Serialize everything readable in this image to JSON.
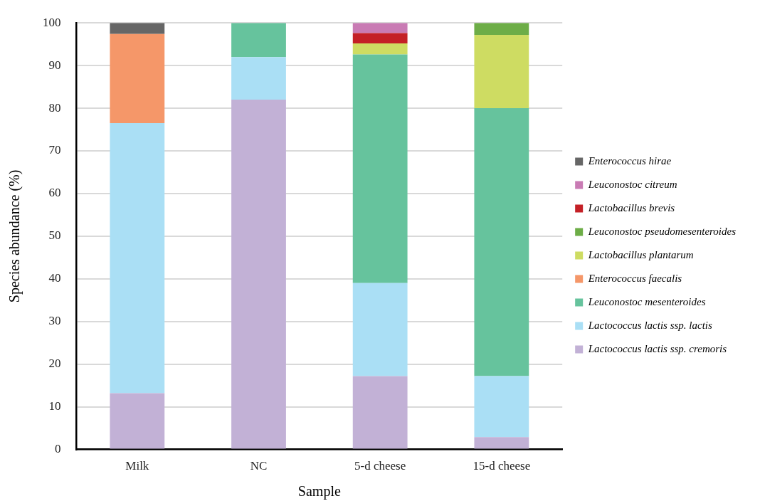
{
  "chart_data": {
    "type": "bar",
    "stacked": true,
    "xlabel": "Sample",
    "ylabel": "Species abundance (%)",
    "categories": [
      "Milk",
      "NC",
      "5-d cheese",
      "15-d cheese"
    ],
    "ylim": [
      0,
      100
    ],
    "yticks": [
      0,
      10,
      20,
      30,
      40,
      50,
      60,
      70,
      80,
      90,
      100
    ],
    "grid": "y",
    "legend": "right",
    "series": [
      {
        "name": "Lactococcus lactis ssp. cremoris",
        "color": "#c2b1d6",
        "values": [
          13.2,
          82,
          17.2,
          2.9
        ]
      },
      {
        "name": "Lactococcus lactis ssp. lactis",
        "color": "#aadff5",
        "values": [
          63.3,
          10,
          21.8,
          14.3
        ]
      },
      {
        "name": "Leuconostoc mesenteroides",
        "color": "#66c39d",
        "values": [
          null,
          8,
          53.6,
          62.8
        ]
      },
      {
        "name": "Enterococcus faecalis",
        "color": "#f59769",
        "values": [
          20.9,
          null,
          null,
          null
        ]
      },
      {
        "name": "Lactobacillus plantarum",
        "color": "#cedc62",
        "values": [
          null,
          null,
          2.6,
          17.2
        ]
      },
      {
        "name": "Leuconostoc pseudomesenteroides",
        "color": "#6dad47",
        "values": [
          null,
          null,
          null,
          2.8
        ]
      },
      {
        "name": "Lactobacillus brevis",
        "color": "#c42026",
        "values": [
          null,
          null,
          2.4,
          null
        ]
      },
      {
        "name": "Leuconostoc citreum",
        "color": "#c97bb4",
        "values": [
          null,
          null,
          2.4,
          null
        ]
      },
      {
        "name": "Enterococcus hirae",
        "color": "#666666",
        "values": [
          2.6,
          null,
          null,
          null
        ]
      }
    ]
  }
}
